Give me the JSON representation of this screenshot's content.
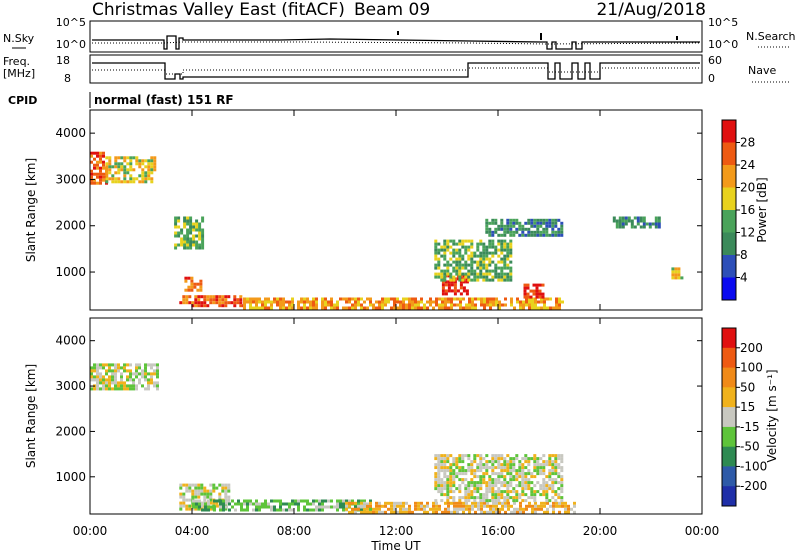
{
  "header": {
    "station": "Christmas Valley East (fitACF)",
    "beam": "Beam 09",
    "date": "21/Aug/2018"
  },
  "noise_panel": {
    "left_label": "N.Sky",
    "left_ticks": [
      "10^5",
      "10^0"
    ],
    "right_ticks": [
      "10^5",
      "10^0"
    ],
    "right_label": "N.Search"
  },
  "freq_panel": {
    "left_label_1": "Freq.",
    "left_label_2": "[MHz]",
    "left_ticks": [
      "18",
      "8"
    ],
    "right_ticks": [
      "60",
      "0"
    ],
    "right_label": "Nave"
  },
  "cpid": {
    "label": "CPID",
    "value": "normal (fast) 151 RF"
  },
  "x_axis": {
    "ticks": [
      "00:00",
      "04:00",
      "08:00",
      "12:00",
      "16:00",
      "20:00",
      "00:00"
    ],
    "label": "Time UT"
  },
  "chart_data": [
    {
      "type": "heatmap",
      "name": "Power",
      "ylabel": "Slant Range [km]",
      "yticks": [
        "1000",
        "2000",
        "3000",
        "4000"
      ],
      "colorbar_label": "Power [dB]",
      "colorbar_ticks": [
        "4",
        "8",
        "12",
        "16",
        "20",
        "24",
        "28"
      ],
      "colorbar_colors": [
        "#0a0af0",
        "#2d4fb8",
        "#3b8a5a",
        "#4aa35a",
        "#e8d21e",
        "#f39a1a",
        "#ee5a12",
        "#e01010"
      ],
      "xlim": [
        0,
        24
      ],
      "ylim": [
        180,
        4500
      ],
      "regions": [
        {
          "t0": 0.0,
          "t1": 0.6,
          "r0": 2900,
          "r1": 3600,
          "level": 6
        },
        {
          "t0": 0.6,
          "t1": 2.5,
          "r0": 2950,
          "r1": 3500,
          "level": 4
        },
        {
          "t0": 3.7,
          "t1": 4.3,
          "r0": 600,
          "r1": 900,
          "level": 6
        },
        {
          "t0": 3.3,
          "t1": 4.4,
          "r0": 1500,
          "r1": 2200,
          "level": 3
        },
        {
          "t0": 3.5,
          "t1": 6.0,
          "r0": 250,
          "r1": 500,
          "level": 6
        },
        {
          "t0": 6.0,
          "t1": 18.5,
          "r0": 250,
          "r1": 450,
          "level": 5
        },
        {
          "t0": 13.8,
          "t1": 14.8,
          "r0": 550,
          "r1": 950,
          "level": 7
        },
        {
          "t0": 13.5,
          "t1": 16.5,
          "r0": 800,
          "r1": 1700,
          "level": 3
        },
        {
          "t0": 17.0,
          "t1": 17.8,
          "r0": 450,
          "r1": 750,
          "level": 7
        },
        {
          "t0": 15.5,
          "t1": 18.5,
          "r0": 1800,
          "r1": 2150,
          "level": 2
        },
        {
          "t0": 20.5,
          "t1": 22.3,
          "r0": 2000,
          "r1": 2200,
          "level": 2
        },
        {
          "t0": 22.8,
          "t1": 23.2,
          "r0": 900,
          "r1": 1100,
          "level": 4
        }
      ]
    },
    {
      "type": "heatmap",
      "name": "Velocity",
      "ylabel": "Slant Range [km]",
      "yticks": [
        "1000",
        "2000",
        "3000",
        "4000"
      ],
      "colorbar_label": "Velocity [m s⁻¹]",
      "colorbar_ticks": [
        "200",
        "100",
        "50",
        "15",
        "-15",
        "-50",
        "-100",
        "-200"
      ],
      "colorbar_colors": [
        "#1f2fa8",
        "#2e5aa8",
        "#2e8a52",
        "#5ec43a",
        "#c8c8c0",
        "#f0b21c",
        "#f08a18",
        "#ee5a12",
        "#e01010"
      ],
      "xlim": [
        0,
        24
      ],
      "ylim": [
        180,
        4500
      ],
      "regions": [
        {
          "t0": 0.0,
          "t1": 2.6,
          "r0": 2950,
          "r1": 3500,
          "level": 4
        },
        {
          "t0": 3.5,
          "t1": 5.5,
          "r0": 300,
          "r1": 850,
          "level": 4
        },
        {
          "t0": 4.0,
          "t1": 11.0,
          "r0": 250,
          "r1": 500,
          "level": 3
        },
        {
          "t0": 10.0,
          "t1": 19.0,
          "r0": 250,
          "r1": 450,
          "level": 5
        },
        {
          "t0": 13.5,
          "t1": 18.5,
          "r0": 500,
          "r1": 1500,
          "level": 4
        }
      ]
    }
  ]
}
